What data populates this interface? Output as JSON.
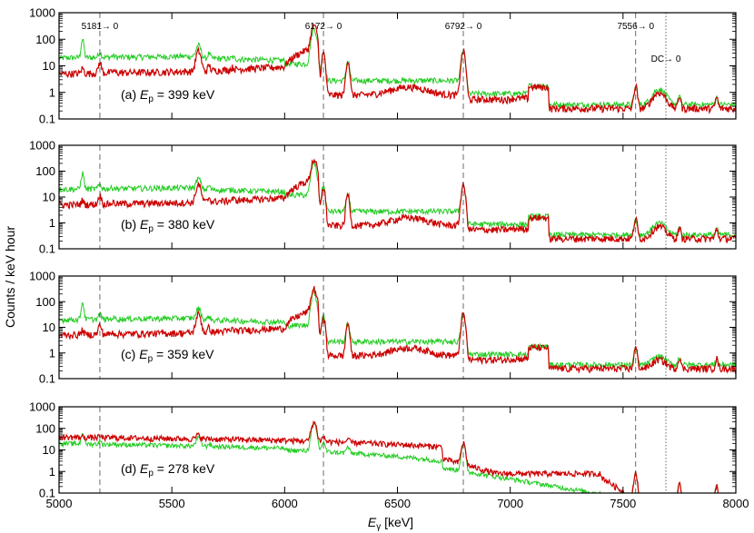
{
  "chart_data": {
    "type": "line",
    "xlabel": "E",
    "xlabel_sub": "γ",
    "xlabel_unit": " [keV]",
    "ylabel": "Counts / keV hour",
    "xlim": [
      5000,
      8000
    ],
    "ylim": [
      0.1,
      1000
    ],
    "yscale": "log",
    "x_ticks": [
      5000,
      5500,
      6000,
      6500,
      7000,
      7500,
      8000
    ],
    "x_tick_labels": [
      "5000",
      "5500",
      "6000",
      "6500",
      "7000",
      "7500",
      "8000"
    ],
    "y_ticks": [
      0.1,
      1,
      10,
      100,
      1000
    ],
    "y_tick_labels": [
      "0.1",
      "1",
      "10",
      "100",
      "1000"
    ],
    "colors": {
      "red": "#cc0000",
      "green": "#22cc22"
    },
    "transitions": [
      {
        "label": "5181→ 0",
        "energy": 5181,
        "style": "dashed"
      },
      {
        "label": "6172→ 0",
        "energy": 6172,
        "style": "dashed"
      },
      {
        "label": "6792→ 0",
        "energy": 6792,
        "style": "dashed"
      },
      {
        "label": "7556→ 0",
        "energy": 7556,
        "style": "dashed"
      },
      {
        "label": "DC→ 0",
        "energy": 7690,
        "style": "dotted"
      }
    ],
    "peaks": [
      {
        "e": 5104,
        "w": 5,
        "a": 3,
        "g": 80
      },
      {
        "e": 5181,
        "w": 6,
        "a": 8,
        "g": 12
      },
      {
        "e": 5240,
        "w": 6,
        "a": 1,
        "g": 3
      },
      {
        "e": 5618,
        "w": 9,
        "a": 30,
        "g": 40
      },
      {
        "e": 5665,
        "w": 5,
        "a": 4,
        "g": 10
      },
      {
        "e": 5770,
        "w": 5,
        "a": 1.5,
        "g": 3
      },
      {
        "e": 6130,
        "w": 9,
        "a": 300,
        "g": 250
      },
      {
        "e": 6172,
        "w": 6,
        "a": 30,
        "g": 30
      },
      {
        "e": 6280,
        "w": 6,
        "a": 15,
        "g": 12
      },
      {
        "e": 6792,
        "w": 7,
        "a": 35,
        "g": 30
      },
      {
        "e": 7556,
        "w": 6,
        "a": 1.5,
        "g": 1.2
      },
      {
        "e": 7750,
        "w": 5,
        "a": 0.5,
        "g": 0.4
      },
      {
        "e": 7915,
        "w": 5,
        "a": 0.4,
        "g": 0.3
      }
    ],
    "panels": [
      {
        "id": "a",
        "label": "(a)",
        "ep_symbol": "E",
        "ep_sub": "p",
        "ep_value": " = 399 keV",
        "show_transition_labels": true,
        "peak_scale": 1.0,
        "dc_strength": 1.2
      },
      {
        "id": "b",
        "label": "(b)",
        "ep_symbol": "E",
        "ep_sub": "p",
        "ep_value": " = 380 keV",
        "show_transition_labels": false,
        "peak_scale": 0.8,
        "dc_strength": 0.8
      },
      {
        "id": "c",
        "label": "(c)",
        "ep_symbol": "E",
        "ep_sub": "p",
        "ep_value": " = 359 keV",
        "show_transition_labels": false,
        "peak_scale": 0.9,
        "dc_strength": 0.5
      },
      {
        "id": "d",
        "label": "(d)",
        "ep_symbol": "E",
        "ep_sub": "p",
        "ep_value": " = 278 keV",
        "show_transition_labels": false,
        "peak_scale": 0.55,
        "dc_strength": 0.0
      }
    ]
  }
}
